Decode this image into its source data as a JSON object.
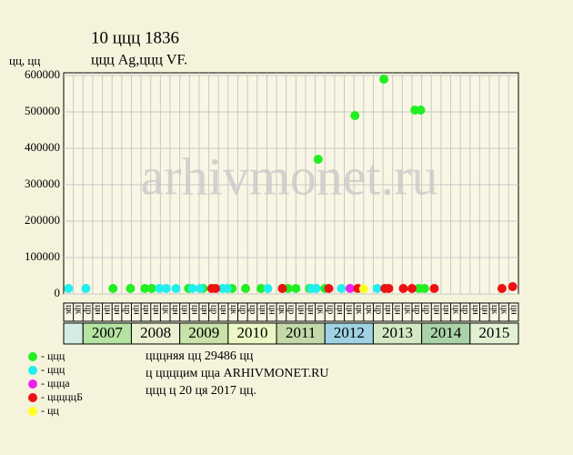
{
  "chart_data": {
    "type": "scatter",
    "title": "10 ццц 1836",
    "subtitle": "ццц Ag,ццц VF.",
    "y_label": "цц, цц",
    "watermark": "arhivmonet.ru",
    "ylim": [
      0,
      600000
    ],
    "yticks": [
      0,
      100000,
      200000,
      300000,
      400000,
      500000,
      600000
    ],
    "xlim": [
      0,
      47
    ],
    "grid": true,
    "column_labels": [
      "цк",
      "цк",
      "цр",
      "цн",
      "цн",
      "цн",
      "цр",
      "цн",
      "цн",
      "цн",
      "цк",
      "цн",
      "цн",
      "цн",
      "цн",
      "цр",
      "цн",
      "цк",
      "цр",
      "цр",
      "цн",
      "цн",
      "цк",
      "цр",
      "цн",
      "цн",
      "цк",
      "цр",
      "цн",
      "цн",
      "цк",
      "цк",
      "цр",
      "цн",
      "цн",
      "цк",
      "цр",
      "цр",
      "цн",
      "цн",
      "цк",
      "цр",
      "цн",
      "цн",
      "цк",
      "цк",
      "цн"
    ],
    "years": [
      {
        "label": "2007",
        "color": "#b4e3a2"
      },
      {
        "label": "2008",
        "color": "#eaf1d2"
      },
      {
        "label": "2009",
        "color": "#c9e2aa"
      },
      {
        "label": "2010",
        "color": "#ecf8c4"
      },
      {
        "label": "2011",
        "color": "#c3d9aa"
      },
      {
        "label": "2012",
        "color": "#9fd2e3"
      },
      {
        "label": "2013",
        "color": "#d3e9c4"
      },
      {
        "label": "2014",
        "color": "#abd3aa"
      },
      {
        "label": "2015",
        "color": "#e2f1d4"
      }
    ],
    "series": [
      {
        "name": "- ццц",
        "color": "#22ee22",
        "x": [
          5.1,
          6.9,
          8.4,
          9.1,
          12.9,
          14.4,
          17.4,
          18.8,
          20.4,
          22.6,
          23.2,
          24.0,
          25.4,
          26.3,
          27.0,
          30.1,
          33.1,
          36.3,
          36.7,
          36.9,
          37.3
        ],
        "values": [
          15000,
          15000,
          15000,
          15000,
          15000,
          15000,
          15000,
          15000,
          15000,
          15000,
          15000,
          15000,
          15000,
          370000,
          15000,
          490000,
          590000,
          505000,
          15000,
          505000,
          15000
        ]
      },
      {
        "name": "- ццц",
        "color": "#22eeee",
        "x": [
          0.5,
          2.3,
          9.9,
          10.6,
          11.6,
          13.3,
          14.1,
          16.4,
          16.9,
          21.1,
          25.6,
          26.1,
          28.7,
          32.4
        ],
        "values": [
          15000,
          15000,
          15000,
          15000,
          15000,
          15000,
          15000,
          15000,
          15000,
          15000,
          15000,
          15000,
          15000,
          15000
        ]
      },
      {
        "name": "- ццца",
        "color": "#ee22ee",
        "x": [
          29.6
        ],
        "values": [
          15000
        ]
      },
      {
        "name": "- цццццБ",
        "color": "#ee1111",
        "x": [
          15.3,
          15.7,
          22.6,
          27.4,
          30.4,
          33.2,
          33.6,
          35.1,
          36.0,
          38.3,
          45.3,
          46.4
        ],
        "values": [
          15000,
          15000,
          15000,
          15000,
          15000,
          15000,
          15000,
          15000,
          15000,
          15000,
          15000,
          20000
        ]
      },
      {
        "name": "- цц",
        "color": "#ffff22",
        "x": [
          31.0
        ],
        "values": [
          14000
        ]
      }
    ],
    "notes": [
      "цццняя цц 29486 цц",
      "ц ццццим цца ARHIVMONET.RU",
      "ццц ц 20 ця 2017 цц."
    ]
  }
}
